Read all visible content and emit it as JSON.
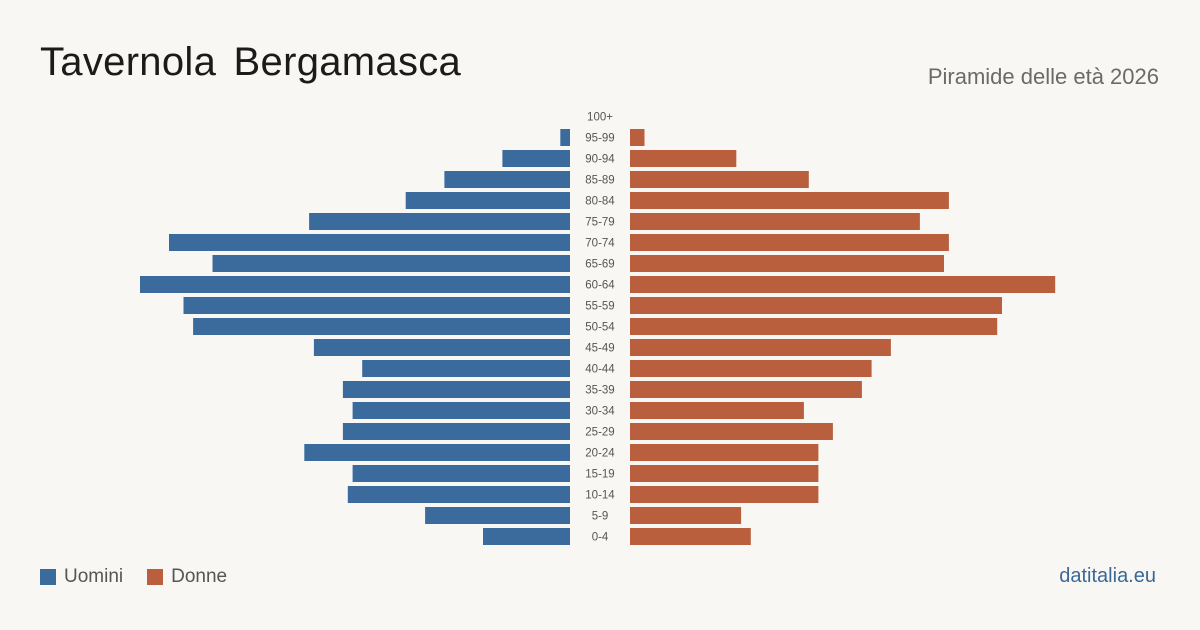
{
  "title": "Tavernola  Bergamasca",
  "subtitle": "Piramide delle età 2026",
  "source": "datitalia.eu",
  "colors": {
    "men": "#3b6b9c",
    "women": "#ba5f3e",
    "background": "#f9f7f3"
  },
  "legend": {
    "men_label": "Uomini",
    "women_label": "Donne"
  },
  "chart_data": {
    "type": "bar",
    "orientation": "horizontal-pyramid",
    "categories": [
      "0-4",
      "5-9",
      "10-14",
      "15-19",
      "20-24",
      "25-29",
      "30-34",
      "35-39",
      "40-44",
      "45-49",
      "50-54",
      "55-59",
      "60-64",
      "65-69",
      "70-74",
      "75-79",
      "80-84",
      "85-89",
      "90-94",
      "95-99",
      "100+"
    ],
    "series": [
      {
        "name": "Uomini",
        "values": [
          18,
          30,
          46,
          45,
          55,
          47,
          45,
          47,
          43,
          53,
          78,
          80,
          89,
          74,
          83,
          54,
          34,
          26,
          14,
          2,
          0
        ]
      },
      {
        "name": "Donne",
        "values": [
          25,
          23,
          39,
          39,
          39,
          42,
          36,
          48,
          50,
          54,
          76,
          77,
          88,
          65,
          66,
          60,
          66,
          37,
          22,
          3,
          0
        ]
      }
    ],
    "legend": "bottom-left",
    "grid": false
  }
}
